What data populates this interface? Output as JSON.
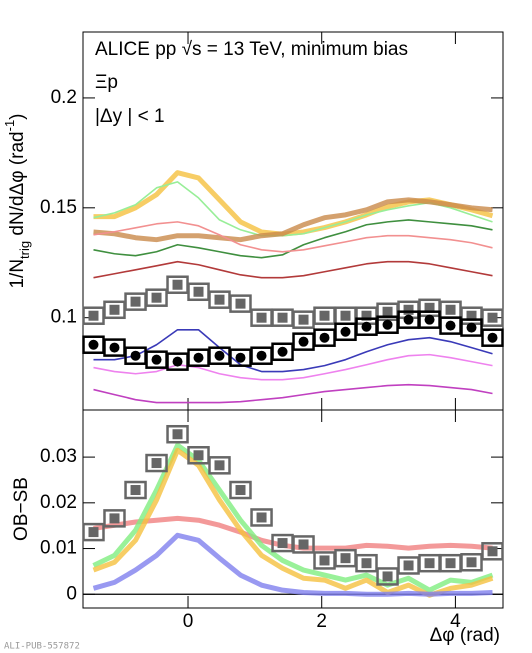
{
  "chart_data": [
    {
      "type": "line",
      "ylabel": [
        "1/N",
        "trig",
        " dN/dΔφ (rad",
        "-1",
        ")"
      ],
      "annotations": [
        "ALICE pp √s = 13 TeV, minimum bias",
        "Ξp",
        "|Δy | < 1"
      ],
      "x": [
        -1.414,
        -1.1,
        -0.785,
        -0.471,
        -0.157,
        0.157,
        0.471,
        0.785,
        1.1,
        1.414,
        1.728,
        2.042,
        2.356,
        2.67,
        2.985,
        3.299,
        3.613,
        3.927,
        4.241,
        4.555
      ],
      "xlim": [
        -1.571,
        4.712
      ],
      "xticks": [
        0,
        2,
        4
      ],
      "ylim": [
        0.058,
        0.23
      ],
      "yticks": [
        0.1,
        0.15,
        0.2
      ],
      "series": [
        {
          "color": "#f5c13f",
          "style": "thick",
          "values": [
            0.146,
            0.146,
            0.15,
            0.156,
            0.166,
            0.1636,
            0.1536,
            0.1436,
            0.139,
            0.138,
            0.139,
            0.141,
            0.1436,
            0.1468,
            0.1505,
            0.1527,
            0.1536,
            0.1514,
            0.1491,
            0.1464
          ]
        },
        {
          "color": "#98ee98",
          "style": "thin",
          "values": [
            0.1455,
            0.1477,
            0.1514,
            0.1591,
            0.1618,
            0.1545,
            0.1445,
            0.14,
            0.1373,
            0.1373,
            0.1382,
            0.141,
            0.1436,
            0.1468,
            0.1491,
            0.1509,
            0.1523,
            0.15,
            0.1468,
            0.1436
          ]
        },
        {
          "color": "#c98a4a",
          "style": "thick",
          "values": [
            0.139,
            0.1382,
            0.1364,
            0.1355,
            0.1373,
            0.1373,
            0.1364,
            0.1355,
            0.1373,
            0.1382,
            0.1423,
            0.1455,
            0.1468,
            0.1491,
            0.1527,
            0.1536,
            0.1527,
            0.1514,
            0.15,
            0.1491
          ]
        },
        {
          "color": "#3f8f3f",
          "style": "thin",
          "values": [
            0.1309,
            0.1291,
            0.1282,
            0.13,
            0.1332,
            0.1318,
            0.13,
            0.1282,
            0.1273,
            0.1286,
            0.1332,
            0.1364,
            0.1391,
            0.1423,
            0.1436,
            0.1445,
            0.1436,
            0.1427,
            0.1418,
            0.14
          ]
        },
        {
          "color": "#f29090",
          "style": "thin",
          "values": [
            0.1377,
            0.1391,
            0.1409,
            0.1427,
            0.1436,
            0.1418,
            0.1377,
            0.1332,
            0.1309,
            0.13,
            0.1309,
            0.1327,
            0.1345,
            0.1364,
            0.1373,
            0.1373,
            0.1364,
            0.1355,
            0.1341,
            0.1318
          ]
        },
        {
          "color": "#b23a3a",
          "style": "thin",
          "values": [
            0.1182,
            0.12,
            0.1218,
            0.1236,
            0.1255,
            0.1241,
            0.1218,
            0.1195,
            0.1182,
            0.1182,
            0.1191,
            0.1209,
            0.1227,
            0.1245,
            0.1255,
            0.1255,
            0.1245,
            0.1227,
            0.1209,
            0.1191
          ]
        },
        {
          "color": "#3a3ab8",
          "style": "thin",
          "values": [
            0.0809,
            0.0809,
            0.0827,
            0.0877,
            0.0945,
            0.0945,
            0.0864,
            0.0786,
            0.0755,
            0.0755,
            0.0764,
            0.0782,
            0.0809,
            0.0845,
            0.0877,
            0.09,
            0.0909,
            0.0891,
            0.0864,
            0.0836
          ]
        },
        {
          "color": "#ee82ee",
          "style": "thin",
          "values": [
            0.0773,
            0.0755,
            0.0745,
            0.0755,
            0.0786,
            0.0773,
            0.0745,
            0.0727,
            0.0718,
            0.0718,
            0.0727,
            0.0745,
            0.0764,
            0.0786,
            0.0809,
            0.0827,
            0.0832,
            0.0818,
            0.08,
            0.0782
          ]
        },
        {
          "color": "#c040c0",
          "style": "thin",
          "values": [
            0.0673,
            0.065,
            0.0627,
            0.0614,
            0.0614,
            0.0614,
            0.0614,
            0.0618,
            0.0627,
            0.0636,
            0.065,
            0.0664,
            0.0673,
            0.0682,
            0.0691,
            0.0695,
            0.0691,
            0.0682,
            0.0673,
            0.0655
          ]
        },
        {
          "color": "#666666",
          "style": "square",
          "values": [
            0.1009,
            0.1036,
            0.1073,
            0.1091,
            0.115,
            0.1118,
            0.1082,
            0.1064,
            0.1,
            0.1,
            0.0991,
            0.1009,
            0.1009,
            0.1009,
            0.1027,
            0.1036,
            0.1045,
            0.1036,
            0.1009,
            0.1
          ]
        },
        {
          "color": "#000000",
          "style": "circle",
          "values": [
            0.0877,
            0.0864,
            0.0827,
            0.0809,
            0.08,
            0.0818,
            0.0827,
            0.0818,
            0.0827,
            0.0845,
            0.0891,
            0.0909,
            0.0936,
            0.0959,
            0.0968,
            0.0991,
            0.0991,
            0.0964,
            0.0955,
            0.0909
          ]
        }
      ]
    },
    {
      "type": "line",
      "ylabel": [
        "OB−SB"
      ],
      "xlabel": "Δφ (rad)",
      "watermark": "ALI-PUB-557872",
      "x": [
        -1.414,
        -1.1,
        -0.785,
        -0.471,
        -0.157,
        0.157,
        0.471,
        0.785,
        1.1,
        1.414,
        1.728,
        2.042,
        2.356,
        2.67,
        2.985,
        3.299,
        3.613,
        3.927,
        4.241,
        4.555
      ],
      "xlim": [
        -1.571,
        4.712
      ],
      "xticks": [
        0,
        2,
        4
      ],
      "ylim": [
        -0.003,
        0.0403
      ],
      "yticks": [
        0,
        0.01,
        0.02,
        0.03
      ],
      "baseline": 0,
      "series": [
        {
          "color": "#f08080",
          "style": "thick",
          "values": [
            0.0144,
            0.0151,
            0.0158,
            0.0162,
            0.0166,
            0.0162,
            0.0151,
            0.0136,
            0.0118,
            0.0107,
            0.0101,
            0.0101,
            0.0101,
            0.0107,
            0.0105,
            0.0101,
            0.0105,
            0.0107,
            0.0105,
            0.0101
          ]
        },
        {
          "color": "#80ee80",
          "style": "thick",
          "values": [
            0.0063,
            0.0085,
            0.014,
            0.0228,
            0.0326,
            0.0293,
            0.0228,
            0.0162,
            0.0107,
            0.0074,
            0.0053,
            0.0042,
            0.0031,
            0.0042,
            0.002,
            0.0035,
            0.0009,
            0.0031,
            0.0026,
            0.0042
          ]
        },
        {
          "color": "#f5c13f",
          "style": "thick",
          "values": [
            0.0053,
            0.007,
            0.0118,
            0.0206,
            0.0315,
            0.0282,
            0.0206,
            0.014,
            0.0085,
            0.0057,
            0.0035,
            0.0031,
            0.0013,
            0.0031,
            0.0004,
            0.002,
            -0.0002,
            0.0013,
            0.002,
            0.0035
          ]
        },
        {
          "color": "#8080ee",
          "style": "thick",
          "values": [
            0.0013,
            0.0026,
            0.0053,
            0.0085,
            0.0129,
            0.0118,
            0.0079,
            0.0042,
            0.002,
            0.0009,
            0.0004,
            0.0002,
            0.0002,
            0,
            0,
            0.0002,
            0,
            0.0002,
            0.0002,
            0.0004
          ]
        },
        {
          "color": "#666666",
          "style": "square",
          "values": [
            0.0136,
            0.0166,
            0.0228,
            0.0287,
            0.035,
            0.0304,
            0.0282,
            0.0228,
            0.0168,
            0.0112,
            0.0109,
            0.0074,
            0.0079,
            0.0068,
            0.0039,
            0.0063,
            0.0068,
            0.0068,
            0.007,
            0.0094
          ]
        }
      ]
    }
  ]
}
